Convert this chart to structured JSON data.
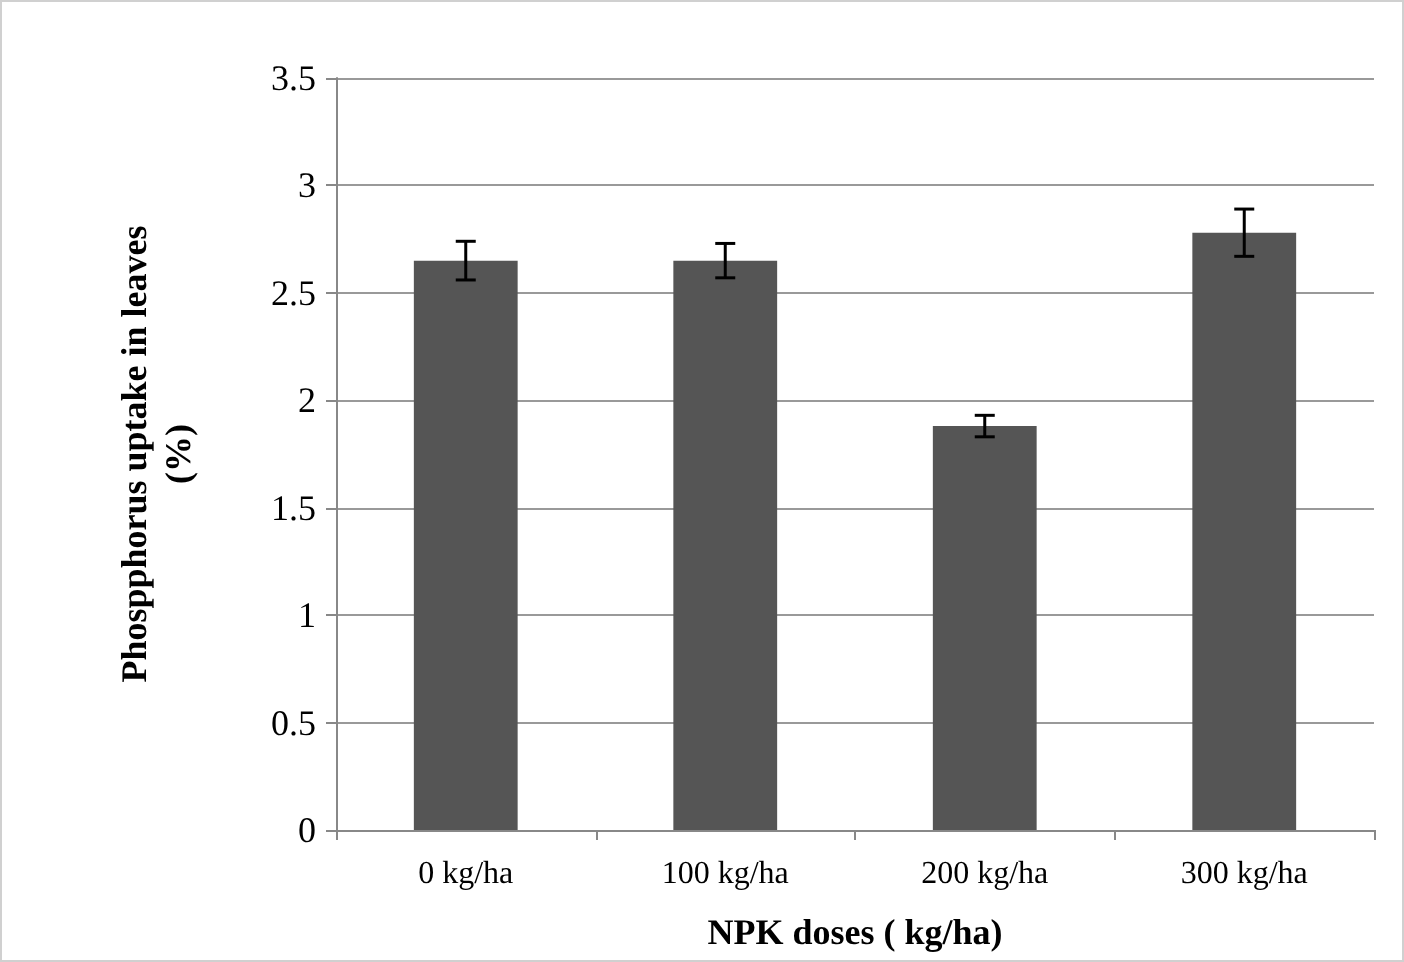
{
  "chart_data": {
    "type": "bar",
    "xlabel": "NPK doses ( kg/ha)",
    "ylabel": "Phospphorus uptake in leaves\n(%)",
    "categories": [
      "0 kg/ha",
      "100 kg/ha",
      "200 kg/ha",
      "300 kg/ha"
    ],
    "values": [
      2.65,
      2.65,
      1.88,
      2.78
    ],
    "errors": [
      0.09,
      0.08,
      0.05,
      0.11
    ],
    "color": "#555555",
    "ylim": [
      0,
      3.5
    ],
    "yticks": [
      0,
      0.5,
      1,
      1.5,
      2,
      2.5,
      3,
      3.5
    ],
    "grid": "y"
  }
}
